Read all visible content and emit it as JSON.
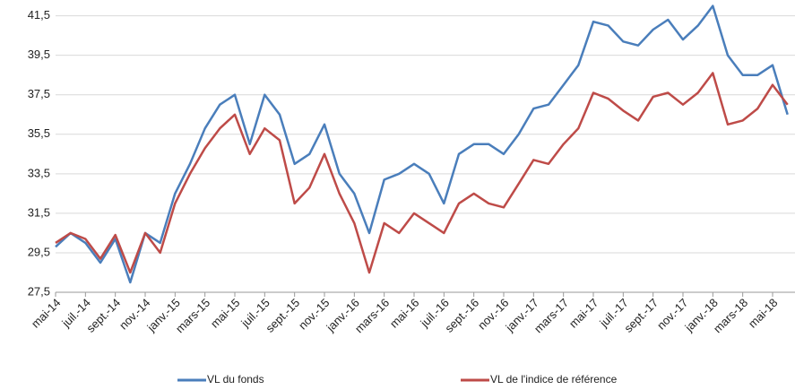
{
  "chart_data": {
    "type": "line",
    "categories": [
      "mai-14",
      null,
      "juil.-14",
      null,
      "sept.-14",
      null,
      "nov.-14",
      null,
      "janv.-15",
      null,
      "mars-15",
      null,
      "mai-15",
      null,
      "juil.-15",
      null,
      "sept.-15",
      null,
      "nov.-15",
      null,
      "janv.-16",
      null,
      "mars-16",
      null,
      "mai-16",
      null,
      "juil.-16",
      null,
      "sept.-16",
      null,
      "nov.-16",
      null,
      "janv.-17",
      null,
      "mars-17",
      null,
      "mai-17",
      null,
      "juil.-17",
      null,
      "sept.-17",
      null,
      "nov.-17",
      null,
      "janv.-18",
      null,
      "mars-18",
      null,
      "mai-18",
      null
    ],
    "series": [
      {
        "name": "VL du fonds",
        "color": "#4a7ebb",
        "values": [
          29.8,
          30.5,
          30.0,
          29.0,
          30.2,
          28.0,
          30.5,
          30.0,
          32.5,
          34.0,
          35.8,
          37.0,
          37.5,
          35.0,
          37.5,
          36.5,
          34.0,
          34.5,
          36.0,
          33.5,
          32.5,
          30.5,
          33.2,
          33.5,
          34.0,
          33.5,
          32.0,
          34.5,
          35.0,
          35.0,
          34.5,
          35.5,
          36.8,
          37.0,
          38.0,
          39.0,
          41.2,
          41.0,
          40.2,
          40.0,
          40.8,
          41.3,
          40.3,
          41.0,
          42.0,
          39.5,
          38.5,
          38.5,
          39.0,
          36.5
        ]
      },
      {
        "name": "VL de l'indice de référence",
        "color": "#be4b48",
        "values": [
          30.0,
          30.5,
          30.2,
          29.2,
          30.4,
          28.5,
          30.5,
          29.5,
          32.0,
          33.5,
          34.8,
          35.8,
          36.5,
          34.5,
          35.8,
          35.2,
          32.0,
          32.8,
          34.5,
          32.5,
          31.0,
          28.5,
          31.0,
          30.5,
          31.5,
          31.0,
          30.5,
          32.0,
          32.5,
          32.0,
          31.8,
          33.0,
          34.2,
          34.0,
          35.0,
          35.8,
          37.6,
          37.3,
          36.7,
          36.2,
          37.4,
          37.6,
          37.0,
          37.6,
          38.6,
          36.0,
          36.2,
          36.8,
          38.0,
          37.0
        ]
      }
    ],
    "ylim": [
      27.5,
      42.3
    ],
    "yticks": [
      {
        "value": 27.5,
        "label": "27,5"
      },
      {
        "value": 29.5,
        "label": "29,5"
      },
      {
        "value": 31.5,
        "label": "31,5"
      },
      {
        "value": 33.5,
        "label": "33,5"
      },
      {
        "value": 35.5,
        "label": "35,5"
      },
      {
        "value": 37.5,
        "label": "37,5"
      },
      {
        "value": 39.5,
        "label": "39,5"
      },
      {
        "value": 41.5,
        "label": "41,5"
      }
    ],
    "grid": true,
    "legend": "bottom"
  }
}
